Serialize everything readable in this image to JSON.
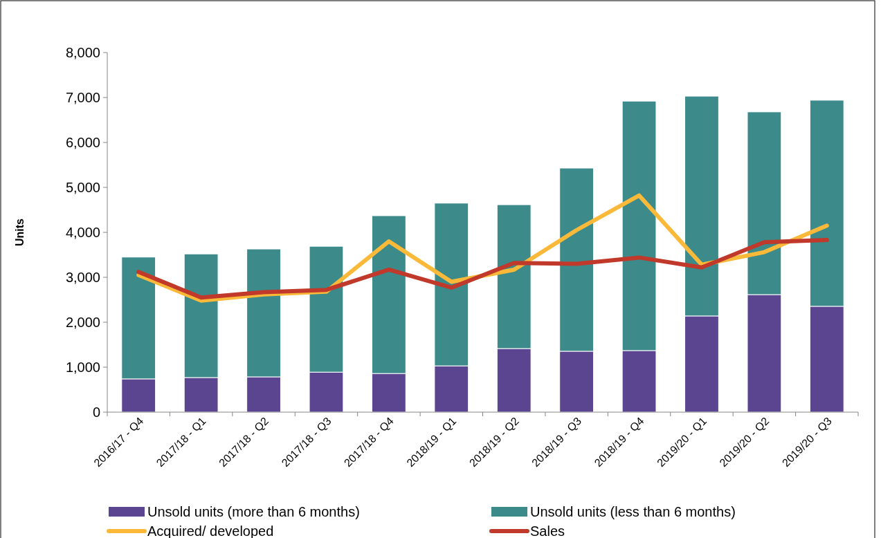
{
  "chart_data": {
    "type": "bar",
    "stacked": true,
    "ylabel": "Units",
    "categories": [
      "2016/17 - Q4",
      "2017/18 - Q1",
      "2017/18 - Q2",
      "2017/18 - Q3",
      "2017/18 - Q4",
      "2018/19 - Q1",
      "2018/19 - Q2",
      "2018/19 - Q3",
      "2018/19 - Q4",
      "2019/20 - Q1",
      "2019/20 - Q2",
      "2019/20 - Q3"
    ],
    "ylim": [
      0,
      8000
    ],
    "yticks": [
      {
        "value": 0,
        "label": "0"
      },
      {
        "value": 1000,
        "label": "1,000"
      },
      {
        "value": 2000,
        "label": "2,000"
      },
      {
        "value": 3000,
        "label": "3,000"
      },
      {
        "value": 4000,
        "label": "4,000"
      },
      {
        "value": 5000,
        "label": "5,000"
      },
      {
        "value": 6000,
        "label": "6,000"
      },
      {
        "value": 7000,
        "label": "7,000"
      },
      {
        "value": 8000,
        "label": "8,000"
      }
    ],
    "grid": false,
    "legend": "bottom",
    "marker": "none",
    "series": [
      {
        "name": "Unsold units (more than 6 months)",
        "color": "#5b4590",
        "values": [
          740,
          770,
          785,
          890,
          860,
          1030,
          1415,
          1355,
          1370,
          2140,
          2615,
          2355
        ]
      },
      {
        "name": "Unsold units (less than 6 months)",
        "color": "#3c8a8a",
        "values": [
          2710,
          2750,
          2845,
          2800,
          3510,
          3620,
          3200,
          4075,
          5550,
          4890,
          4065,
          4585
        ]
      },
      {
        "name": "Acquired/ developed",
        "type": "line",
        "color": "#fbb93a",
        "values": [
          3050,
          2480,
          2620,
          2680,
          3800,
          2900,
          3170,
          4050,
          4820,
          3280,
          3560,
          4150
        ]
      },
      {
        "name": "Sales",
        "type": "line",
        "color": "#c0392b",
        "values": [
          3120,
          2550,
          2670,
          2720,
          3170,
          2770,
          3320,
          3300,
          3440,
          3220,
          3780,
          3830
        ]
      }
    ]
  }
}
